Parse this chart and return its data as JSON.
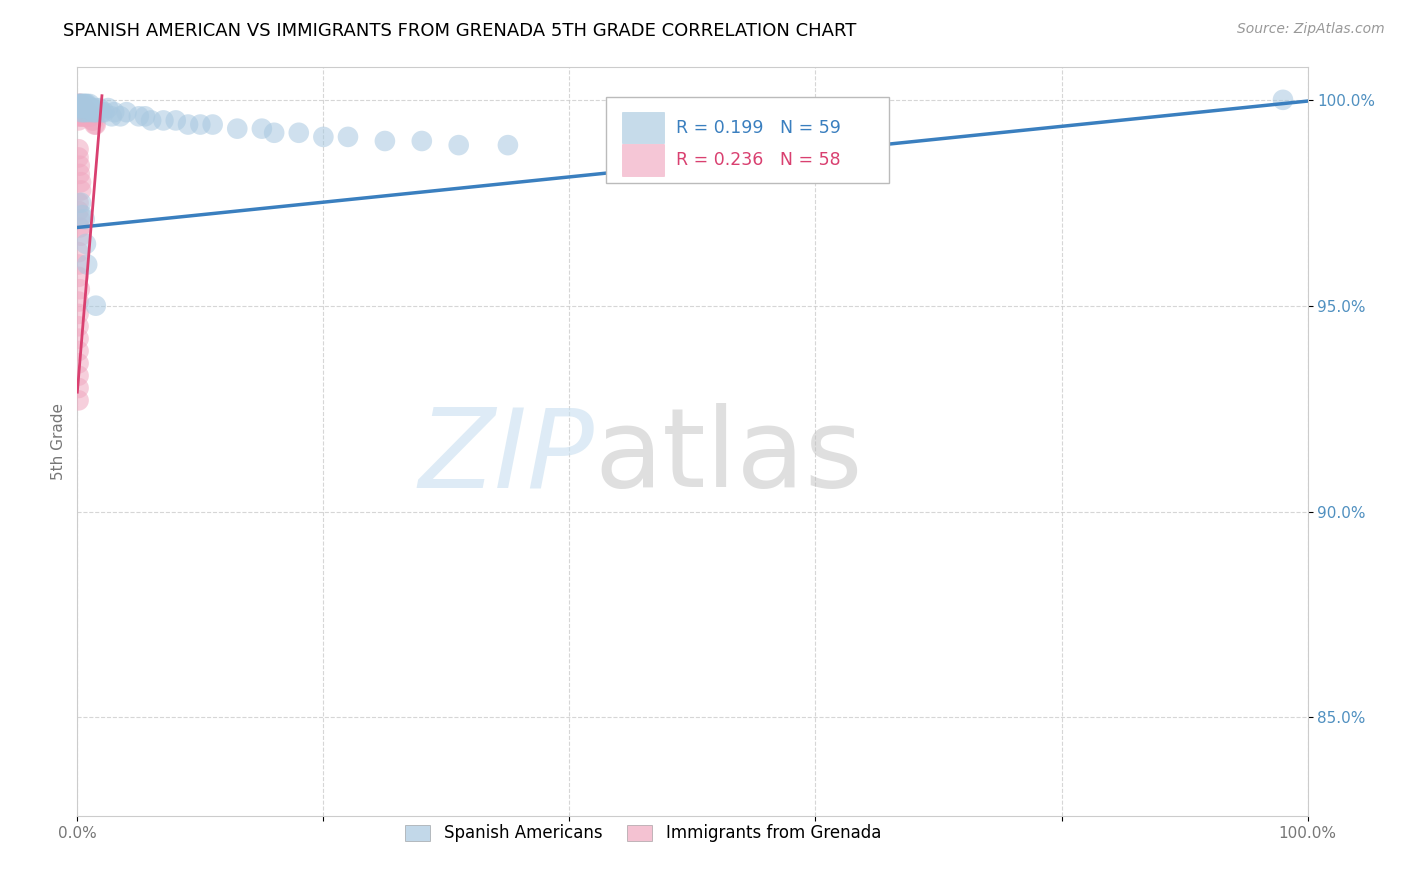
{
  "title": "SPANISH AMERICAN VS IMMIGRANTS FROM GRENADA 5TH GRADE CORRELATION CHART",
  "source": "Source: ZipAtlas.com",
  "ylabel": "5th Grade",
  "xlim": [
    0.0,
    1.0
  ],
  "ylim": [
    0.826,
    1.008
  ],
  "xticks": [
    0.0,
    0.2,
    0.4,
    0.6,
    0.8,
    1.0
  ],
  "xticklabels": [
    "0.0%",
    "",
    "",
    "",
    "",
    "100.0%"
  ],
  "ytick_positions": [
    0.85,
    0.9,
    0.95,
    1.0
  ],
  "yticklabels": [
    "85.0%",
    "90.0%",
    "95.0%",
    "100.0%"
  ],
  "blue_color": "#A8C8E0",
  "pink_color": "#F0A8C0",
  "trendline_blue": "#3A7FBF",
  "trendline_pink": "#D94070",
  "ytick_color": "#5090C0",
  "R_blue": 0.199,
  "N_blue": 59,
  "R_pink": 0.236,
  "N_pink": 58,
  "grid_color": "#CCCCCC",
  "blue_scatter_x": [
    0.001,
    0.002,
    0.002,
    0.003,
    0.003,
    0.003,
    0.004,
    0.004,
    0.005,
    0.005,
    0.005,
    0.006,
    0.006,
    0.007,
    0.007,
    0.008,
    0.008,
    0.009,
    0.01,
    0.01,
    0.011,
    0.012,
    0.013,
    0.014,
    0.015,
    0.016,
    0.018,
    0.02,
    0.022,
    0.025,
    0.028,
    0.03,
    0.035,
    0.04,
    0.05,
    0.055,
    0.06,
    0.07,
    0.08,
    0.09,
    0.1,
    0.11,
    0.13,
    0.15,
    0.16,
    0.18,
    0.2,
    0.22,
    0.25,
    0.28,
    0.31,
    0.35,
    0.006,
    0.007,
    0.003,
    0.004,
    0.008,
    0.015,
    0.98
  ],
  "blue_scatter_y": [
    0.999,
    0.999,
    0.998,
    0.999,
    0.998,
    0.997,
    0.999,
    0.998,
    0.999,
    0.998,
    0.997,
    0.999,
    0.998,
    0.999,
    0.997,
    0.999,
    0.998,
    0.998,
    0.999,
    0.997,
    0.998,
    0.998,
    0.997,
    0.997,
    0.998,
    0.997,
    0.998,
    0.997,
    0.997,
    0.998,
    0.996,
    0.997,
    0.996,
    0.997,
    0.996,
    0.996,
    0.995,
    0.995,
    0.995,
    0.994,
    0.994,
    0.994,
    0.993,
    0.993,
    0.992,
    0.992,
    0.991,
    0.991,
    0.99,
    0.99,
    0.989,
    0.989,
    0.971,
    0.965,
    0.975,
    0.972,
    0.96,
    0.95,
    1.0
  ],
  "pink_scatter_x": [
    0.001,
    0.001,
    0.001,
    0.001,
    0.001,
    0.002,
    0.002,
    0.002,
    0.002,
    0.003,
    0.003,
    0.003,
    0.003,
    0.004,
    0.004,
    0.004,
    0.005,
    0.005,
    0.005,
    0.006,
    0.006,
    0.006,
    0.007,
    0.007,
    0.008,
    0.008,
    0.009,
    0.01,
    0.01,
    0.011,
    0.012,
    0.013,
    0.014,
    0.015,
    0.001,
    0.001,
    0.002,
    0.002,
    0.003,
    0.003,
    0.001,
    0.001,
    0.002,
    0.002,
    0.003,
    0.001,
    0.001,
    0.001,
    0.002,
    0.001,
    0.001,
    0.001,
    0.001,
    0.001,
    0.001,
    0.001,
    0.001,
    0.001
  ],
  "pink_scatter_y": [
    0.999,
    0.998,
    0.997,
    0.996,
    0.995,
    0.999,
    0.998,
    0.997,
    0.996,
    0.999,
    0.998,
    0.997,
    0.996,
    0.998,
    0.997,
    0.996,
    0.998,
    0.997,
    0.996,
    0.998,
    0.997,
    0.996,
    0.997,
    0.996,
    0.997,
    0.996,
    0.996,
    0.997,
    0.996,
    0.996,
    0.995,
    0.995,
    0.994,
    0.994,
    0.988,
    0.986,
    0.984,
    0.982,
    0.98,
    0.978,
    0.975,
    0.973,
    0.971,
    0.969,
    0.967,
    0.963,
    0.96,
    0.957,
    0.954,
    0.951,
    0.948,
    0.945,
    0.942,
    0.939,
    0.936,
    0.933,
    0.93,
    0.927
  ],
  "blue_trend_x": [
    0.0,
    1.0
  ],
  "blue_trend_y": [
    0.969,
    0.9997
  ],
  "pink_trend_x": [
    0.0,
    0.02
  ],
  "pink_trend_y": [
    0.929,
    1.001
  ]
}
